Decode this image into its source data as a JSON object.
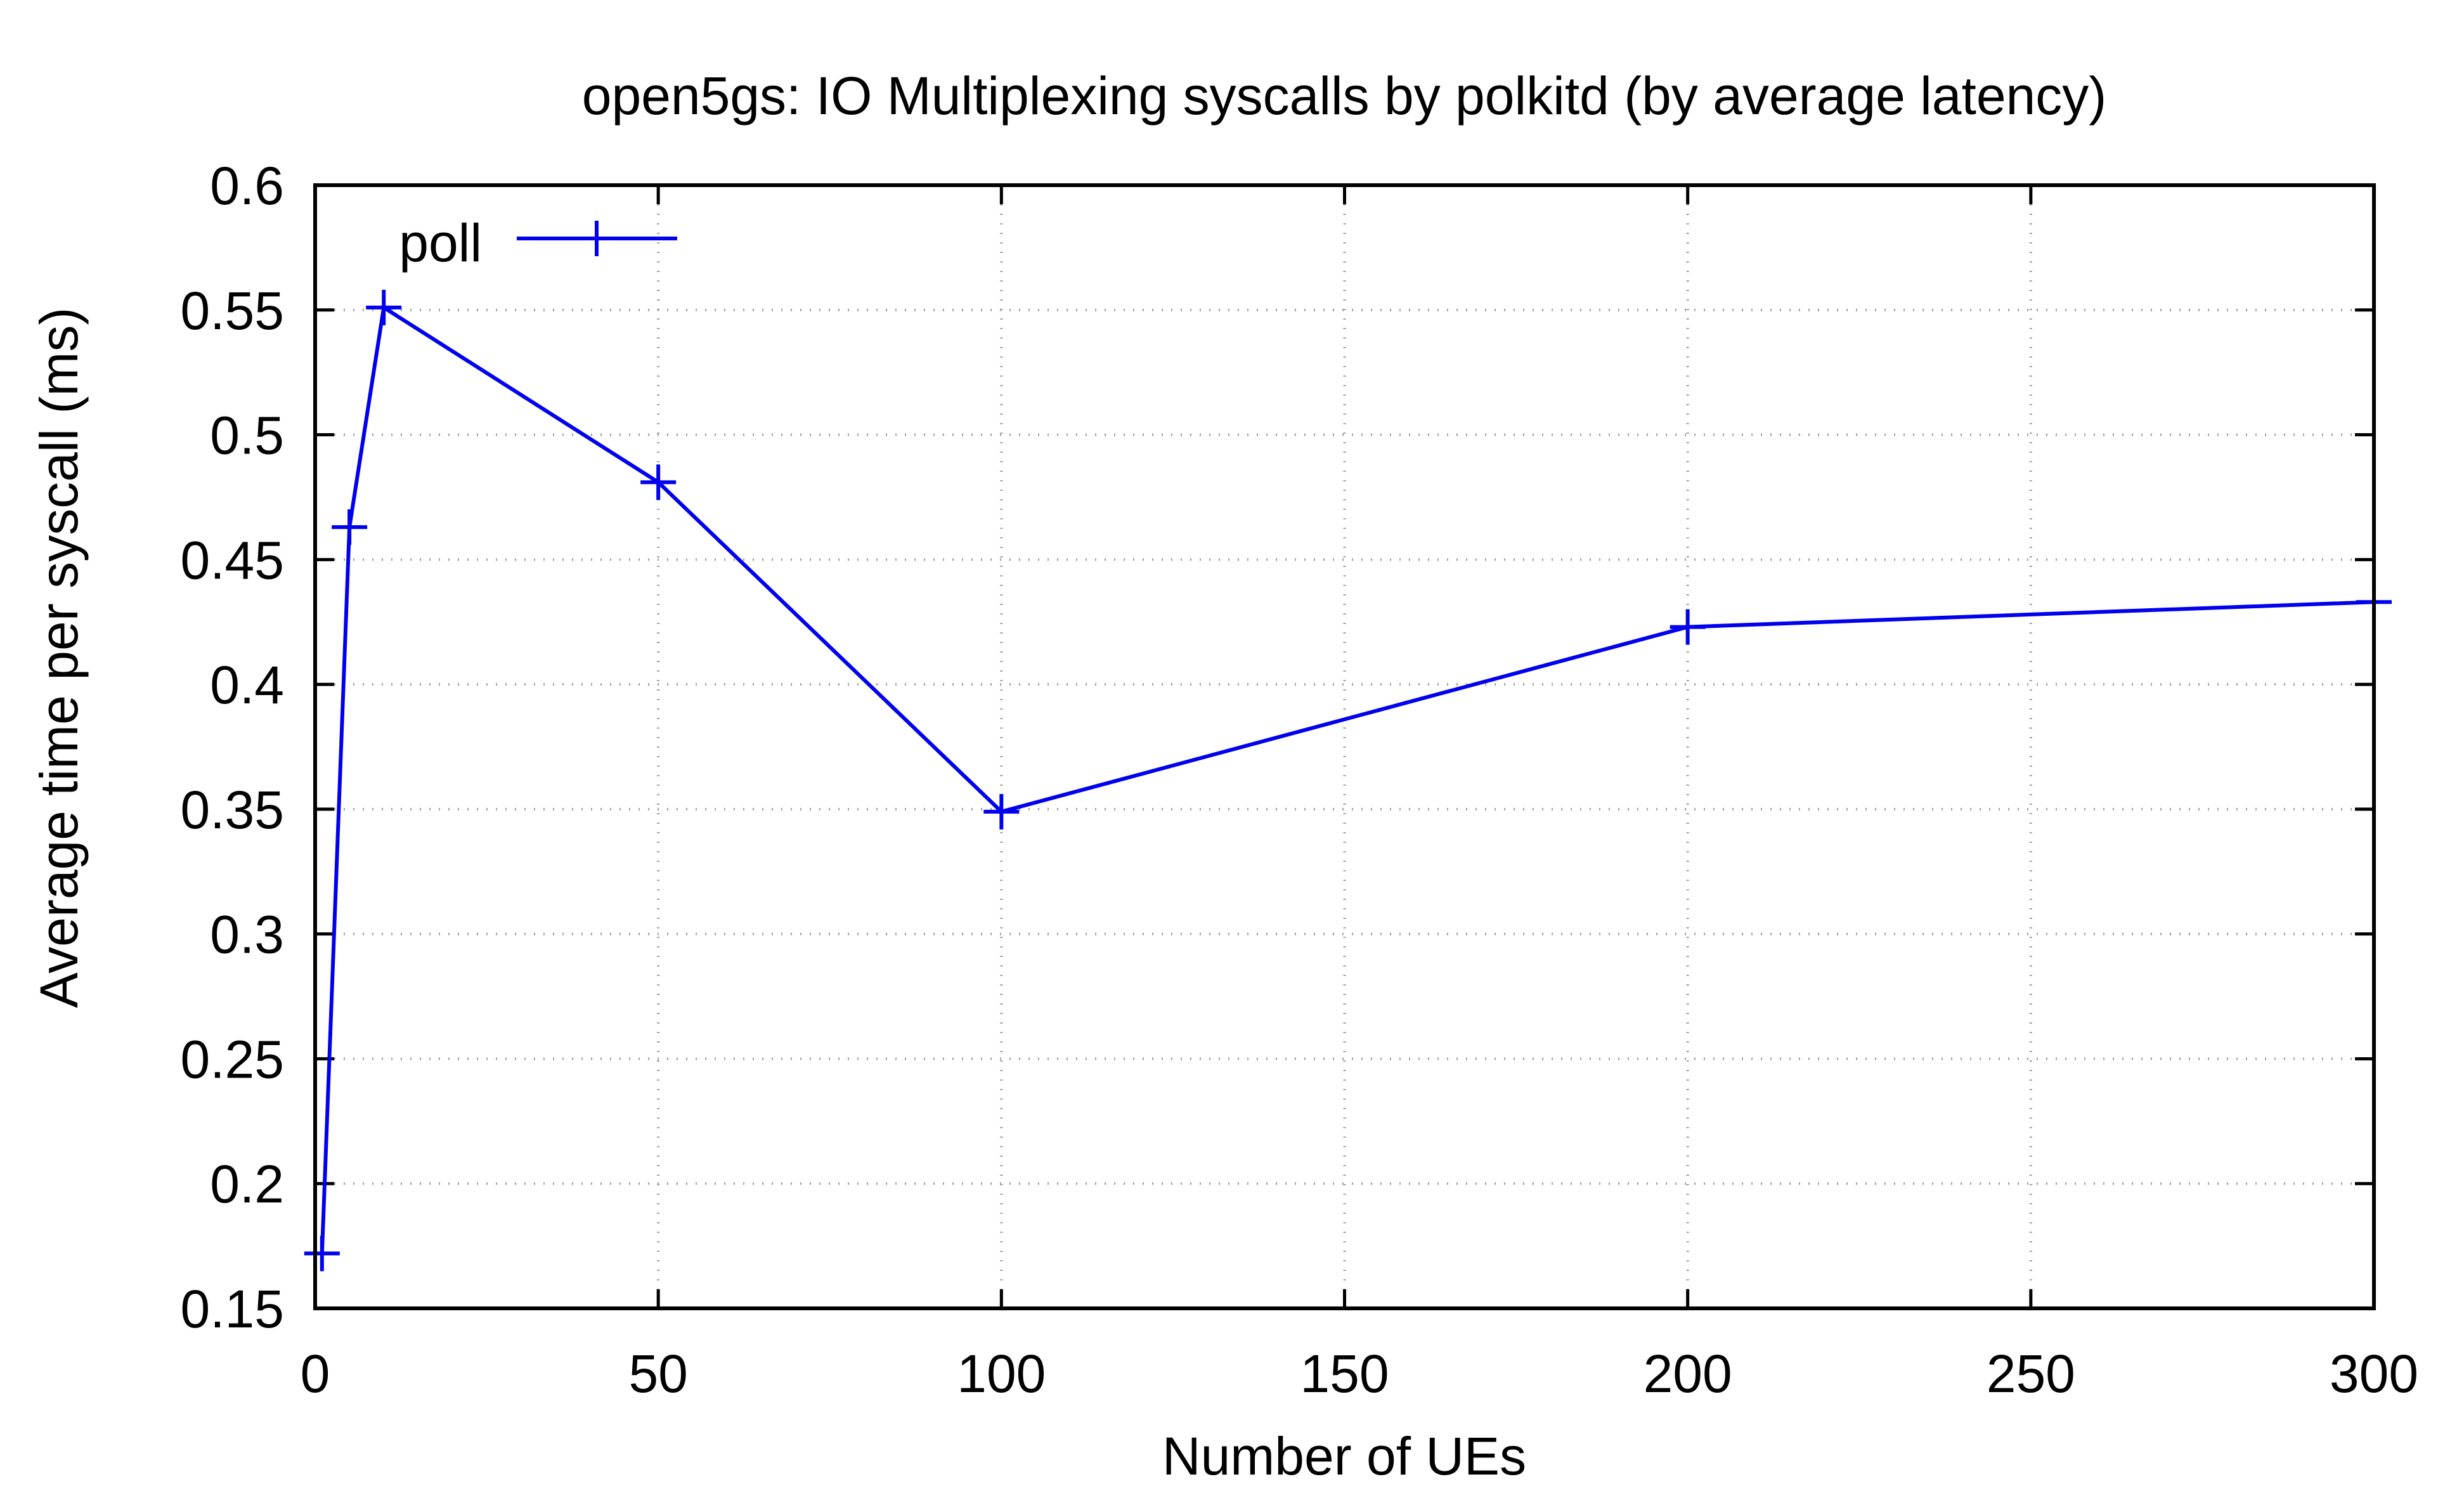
{
  "chart_data": {
    "type": "line",
    "title": "open5gs: IO Multiplexing syscalls by polkitd (by average latency)",
    "xlabel": "Number of UEs",
    "ylabel": "Average time per syscall (ms)",
    "xlim": [
      0,
      300
    ],
    "ylim": [
      0.15,
      0.6
    ],
    "xticks": [
      0,
      50,
      100,
      150,
      200,
      250,
      300
    ],
    "yticks": [
      0.15,
      0.2,
      0.25,
      0.3,
      0.35,
      0.4,
      0.45,
      0.5,
      0.55,
      0.6
    ],
    "xtick_labels": [
      "0",
      "50",
      "100",
      "150",
      "200",
      "250",
      "300"
    ],
    "ytick_labels": [
      "0.15",
      "0.2",
      "0.25",
      "0.3",
      "0.35",
      "0.4",
      "0.45",
      "0.5",
      "0.55",
      "0.6"
    ],
    "grid": true,
    "legend_position": "top-left",
    "series": [
      {
        "name": "poll",
        "color": "#0000ee",
        "marker": "plus",
        "x": [
          1,
          5,
          10,
          50,
          100,
          200,
          300
        ],
        "y": [
          0.172,
          0.463,
          0.551,
          0.481,
          0.349,
          0.423,
          0.433
        ]
      }
    ]
  }
}
